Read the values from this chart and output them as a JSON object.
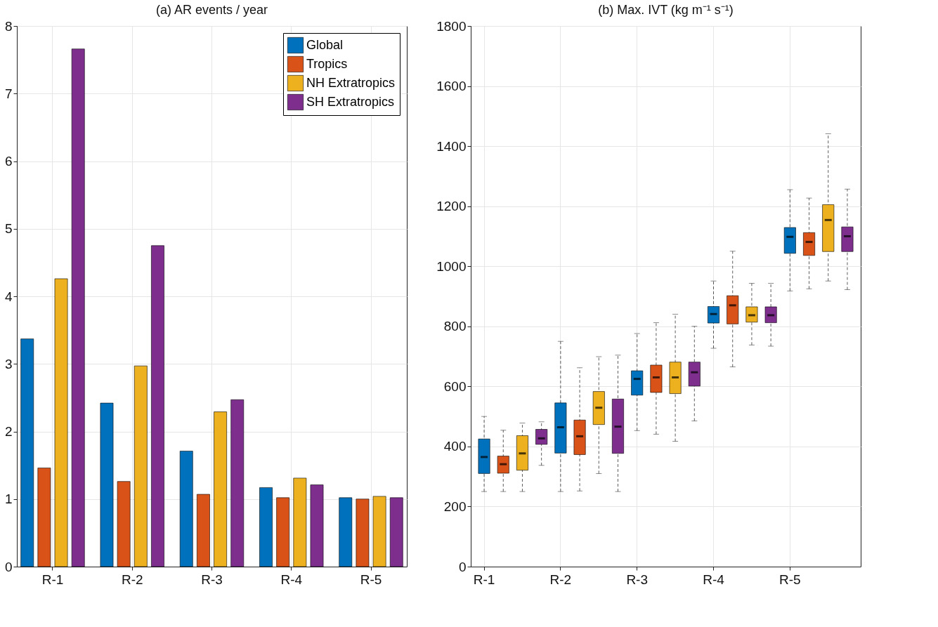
{
  "chart_data": [
    {
      "type": "bar",
      "title": "(a) AR events / year",
      "categories": [
        "R-1",
        "R-2",
        "R-3",
        "R-4",
        "R-5"
      ],
      "series": [
        {
          "name": "Global",
          "color": "#0072bd",
          "values": [
            3.37,
            2.42,
            1.71,
            1.17,
            1.02
          ]
        },
        {
          "name": "Tropics",
          "color": "#d95319",
          "values": [
            1.46,
            1.26,
            1.07,
            1.02,
            1.0
          ]
        },
        {
          "name": "NH Extratropics",
          "color": "#edb120",
          "values": [
            4.26,
            2.97,
            2.29,
            1.31,
            1.04
          ]
        },
        {
          "name": "SH Extratropics",
          "color": "#7e2f8e",
          "values": [
            7.66,
            4.75,
            2.47,
            1.21,
            1.02
          ]
        }
      ],
      "ylim": [
        0,
        8
      ],
      "yticks": [
        0,
        1,
        2,
        3,
        4,
        5,
        6,
        7,
        8
      ],
      "grid": true,
      "legend": "top right"
    },
    {
      "type": "box",
      "title": "(b) Max. IVT (kg m⁻¹ s⁻¹)",
      "categories": [
        "R-1",
        null,
        null,
        null,
        "R-2",
        null,
        null,
        null,
        "R-3",
        null,
        null,
        null,
        "R-4",
        null,
        null,
        null,
        "R-5",
        null,
        null,
        null
      ],
      "series": [
        {
          "color": "#0072bd",
          "boxes": [
            {
              "low": 250,
              "q1": 310,
              "median": 365,
              "q3": 425,
              "high": 500
            },
            null,
            null,
            null,
            {
              "low": 250,
              "q1": 378,
              "median": 464,
              "q3": 545,
              "high": 750
            },
            null,
            null,
            null,
            {
              "low": 453,
              "q1": 571,
              "median": 625,
              "q3": 652,
              "high": 776
            },
            null,
            null,
            null,
            {
              "low": 727,
              "q1": 811,
              "median": 841,
              "q3": 866,
              "high": 951
            },
            null,
            null,
            null,
            {
              "low": 918,
              "q1": 1043,
              "median": 1098,
              "q3": 1129,
              "high": 1255
            },
            null,
            null,
            null
          ]
        },
        {
          "color": "#d95319",
          "boxes": [
            null,
            {
              "low": 250,
              "q1": 311,
              "median": 341,
              "q3": 368,
              "high": 454
            },
            null,
            null,
            null,
            {
              "low": 252,
              "q1": 373,
              "median": 434,
              "q3": 488,
              "high": 662
            },
            null,
            null,
            null,
            {
              "low": 441,
              "q1": 580,
              "median": 630,
              "q3": 671,
              "high": 812
            },
            null,
            null,
            null,
            {
              "low": 665,
              "q1": 808,
              "median": 870,
              "q3": 902,
              "high": 1050
            },
            null,
            null,
            null,
            {
              "low": 925,
              "q1": 1036,
              "median": 1081,
              "q3": 1112,
              "high": 1227
            },
            null,
            null
          ]
        },
        {
          "color": "#edb120",
          "boxes": [
            null,
            null,
            {
              "low": 250,
              "q1": 321,
              "median": 377,
              "q3": 436,
              "high": 478
            },
            null,
            null,
            null,
            {
              "low": 310,
              "q1": 473,
              "median": 529,
              "q3": 583,
              "high": 699
            },
            null,
            null,
            null,
            {
              "low": 417,
              "q1": 576,
              "median": 630,
              "q3": 681,
              "high": 840
            },
            null,
            null,
            null,
            {
              "low": 738,
              "q1": 814,
              "median": 837,
              "q3": 865,
              "high": 943
            },
            null,
            null,
            null,
            {
              "low": 951,
              "q1": 1049,
              "median": 1154,
              "q3": 1205,
              "high": 1441
            },
            null
          ]
        },
        {
          "color": "#7e2f8e",
          "boxes": [
            null,
            null,
            null,
            {
              "low": 337,
              "q1": 407,
              "median": 427,
              "q3": 457,
              "high": 482
            },
            null,
            null,
            null,
            {
              "low": 250,
              "q1": 377,
              "median": 466,
              "q3": 558,
              "high": 704
            },
            null,
            null,
            null,
            {
              "low": 485,
              "q1": 601,
              "median": 647,
              "q3": 681,
              "high": 800
            },
            null,
            null,
            null,
            {
              "low": 734,
              "q1": 812,
              "median": 837,
              "q3": 865,
              "high": 943
            },
            null,
            null,
            null,
            {
              "low": 922,
              "q1": 1049,
              "median": 1100,
              "q3": 1131,
              "high": 1257
            }
          ]
        }
      ],
      "ylim": [
        0,
        1800
      ],
      "yticks": [
        0,
        200,
        400,
        600,
        800,
        1000,
        1200,
        1400,
        1600,
        1800
      ],
      "grid": true
    }
  ]
}
